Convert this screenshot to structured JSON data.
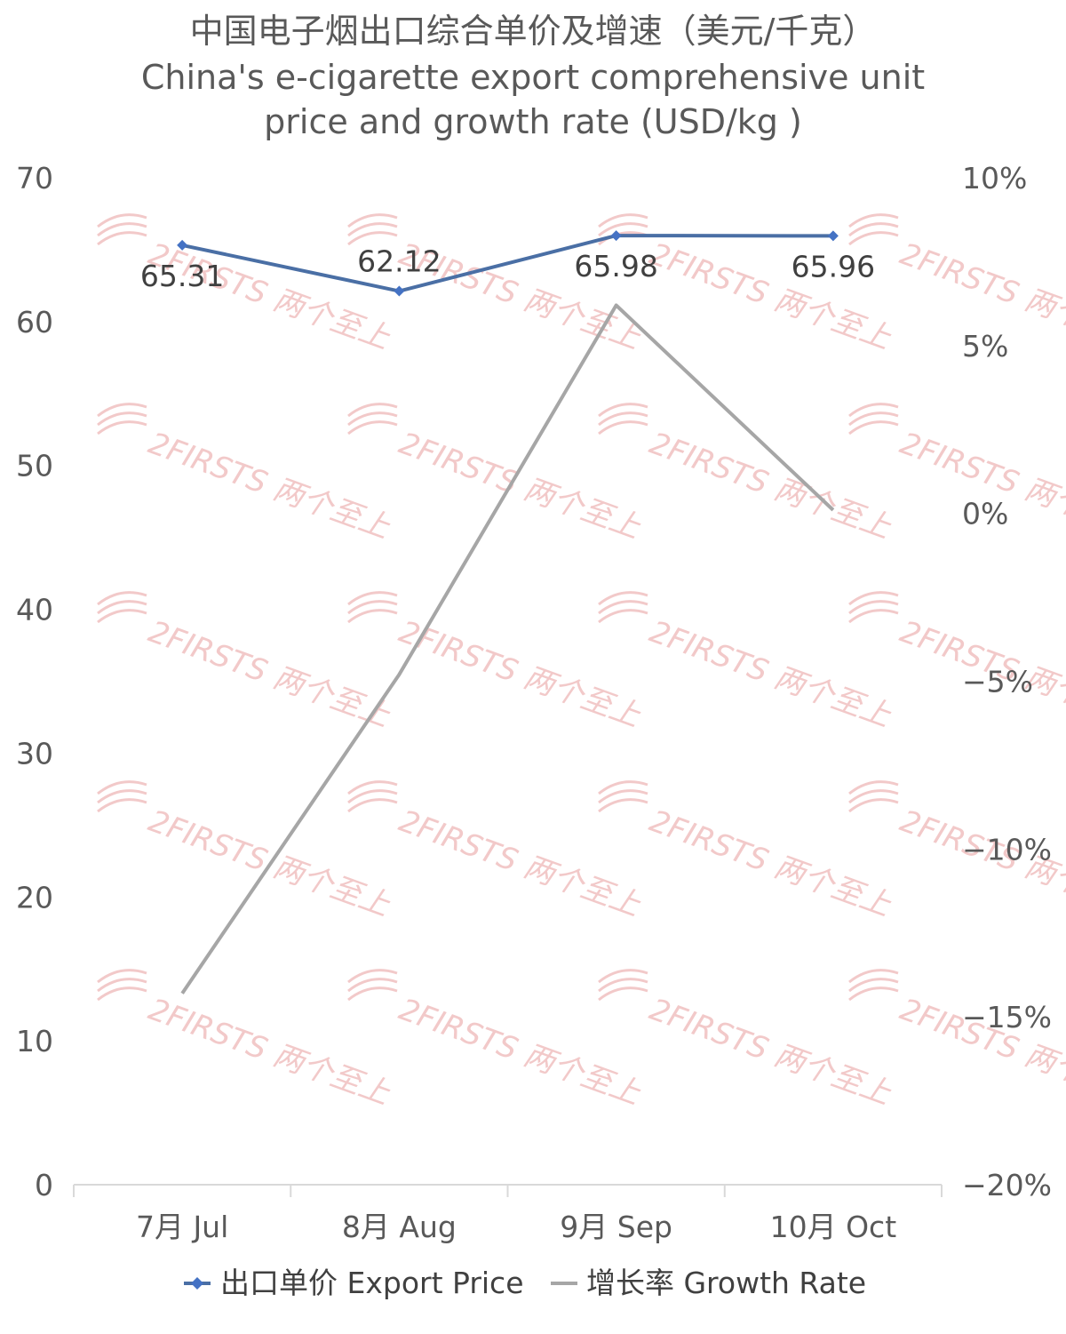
{
  "chart_data": {
    "type": "line",
    "title_cn": "中国电子烟出口综合单价及增速（美元/千克）",
    "title_en_line1": "China's e-cigarette export comprehensive unit",
    "title_en_line2": "price and growth rate (USD/kg )",
    "categories": [
      "7月 Jul",
      "8月 Aug",
      "9月 Sep",
      "10月 Oct"
    ],
    "left_axis": {
      "ylim": [
        0,
        70
      ],
      "ticks": [
        "0",
        "10",
        "20",
        "30",
        "40",
        "50",
        "60",
        "70"
      ]
    },
    "right_axis": {
      "ylim": [
        -20,
        10
      ],
      "ticks": [
        "−20%",
        "−15%",
        "−10%",
        "−5%",
        "0%",
        "5%",
        "10%"
      ]
    },
    "series": [
      {
        "name": "出口单价 Export Price",
        "axis": "left",
        "color": "#4a6fa5",
        "marker": "diamond",
        "values": [
          65.31,
          62.12,
          65.98,
          65.96
        ],
        "labels": [
          "65.31",
          "62.12",
          "65.98",
          "65.96"
        ]
      },
      {
        "name": "增长率 Growth Rate",
        "axis": "right",
        "color": "#a6a6a6",
        "marker": "none",
        "values": [
          -14.3,
          -4.8,
          6.2,
          0.1
        ]
      }
    ],
    "legend_position": "bottom",
    "grid": false,
    "watermark": "2FIRSTS 两个至上"
  }
}
